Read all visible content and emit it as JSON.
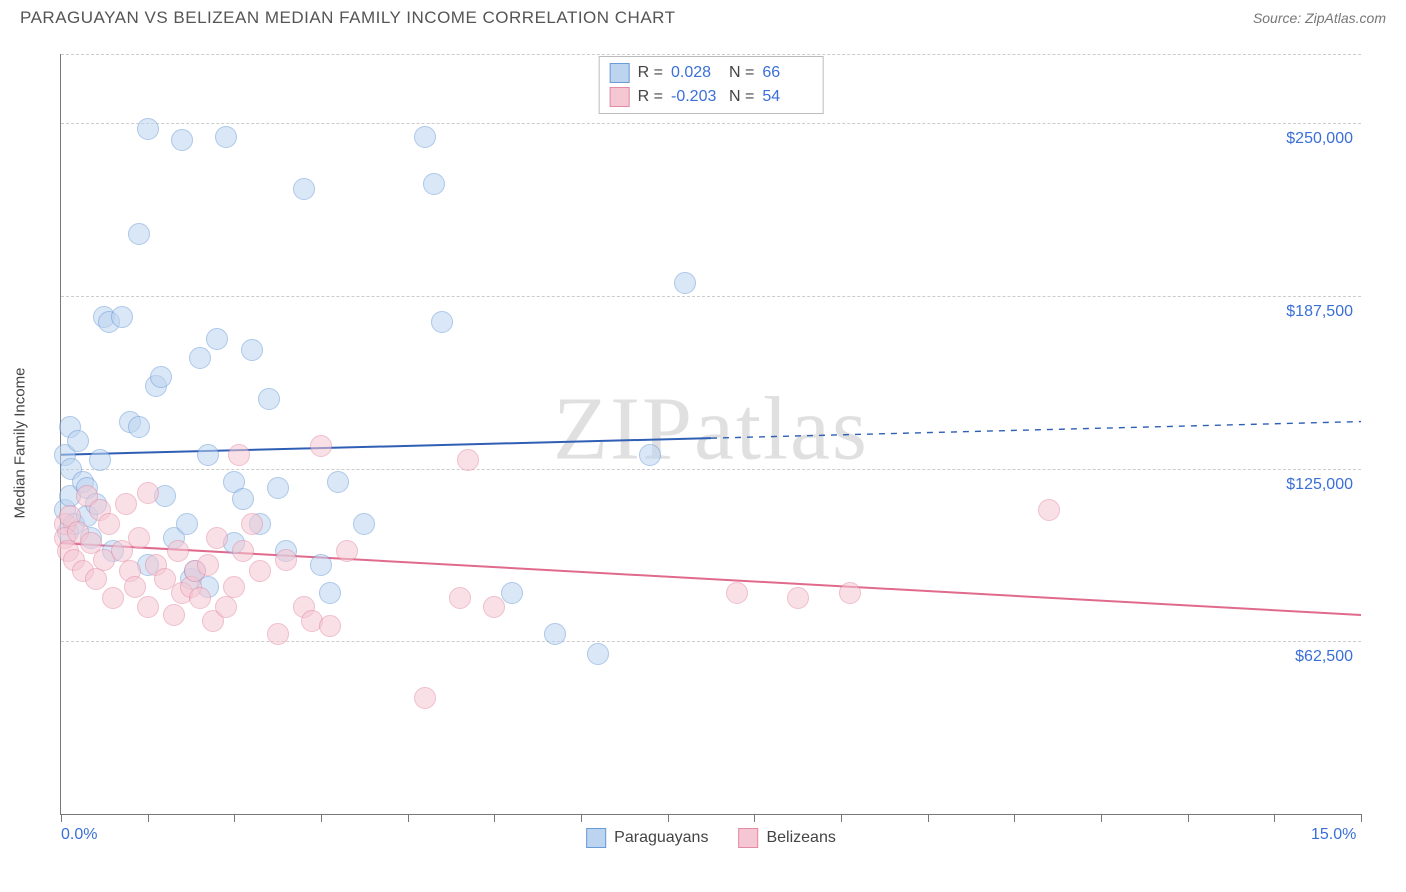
{
  "header": {
    "title": "PARAGUAYAN VS BELIZEAN MEDIAN FAMILY INCOME CORRELATION CHART",
    "source": "Source: ZipAtlas.com"
  },
  "chart": {
    "type": "scatter",
    "ylabel": "Median Family Income",
    "watermark": "ZIPatlas",
    "xlim": [
      0,
      15
    ],
    "ylim": [
      0,
      275000
    ],
    "x_ticks": [
      0,
      1,
      2,
      3,
      4,
      5,
      6,
      7,
      8,
      9,
      10,
      11,
      12,
      13,
      14,
      15
    ],
    "x_tick_labels_shown": {
      "0": "0.0%",
      "15": "15.0%"
    },
    "y_gridlines": [
      62500,
      125000,
      187500,
      250000,
      275000
    ],
    "y_tick_labels": {
      "62500": "$62,500",
      "125000": "$125,000",
      "187500": "$187,500",
      "250000": "$250,000"
    },
    "background_color": "#ffffff",
    "grid_color": "#cccccc",
    "axis_color": "#777777",
    "tick_label_color": "#3a6fd8",
    "marker_radius": 10,
    "marker_border_width": 1.2,
    "series": [
      {
        "name": "Paraguayans",
        "fill": "#bcd4f0",
        "stroke": "#6a9bd8",
        "fill_opacity": 0.55,
        "R": "0.028",
        "N": "66",
        "trend": {
          "y_at_x0": 130000,
          "y_at_x15": 142000,
          "solid_until_x": 7.5,
          "color": "#2f5fb5",
          "width": 2
        },
        "points": [
          [
            0.05,
            130000
          ],
          [
            0.05,
            110000
          ],
          [
            0.08,
            102000
          ],
          [
            0.1,
            115000
          ],
          [
            0.1,
            140000
          ],
          [
            0.12,
            125000
          ],
          [
            0.15,
            105000
          ],
          [
            0.2,
            135000
          ],
          [
            0.25,
            120000
          ],
          [
            0.3,
            118000
          ],
          [
            0.3,
            108000
          ],
          [
            0.35,
            100000
          ],
          [
            0.4,
            112000
          ],
          [
            0.45,
            128000
          ],
          [
            0.5,
            180000
          ],
          [
            0.55,
            178000
          ],
          [
            0.6,
            95000
          ],
          [
            0.7,
            180000
          ],
          [
            0.8,
            142000
          ],
          [
            0.9,
            210000
          ],
          [
            0.9,
            140000
          ],
          [
            1.0,
            248000
          ],
          [
            1.0,
            90000
          ],
          [
            1.1,
            155000
          ],
          [
            1.15,
            158000
          ],
          [
            1.2,
            115000
          ],
          [
            1.3,
            100000
          ],
          [
            1.4,
            244000
          ],
          [
            1.45,
            105000
          ],
          [
            1.5,
            85000
          ],
          [
            1.55,
            88000
          ],
          [
            1.6,
            165000
          ],
          [
            1.7,
            82000
          ],
          [
            1.7,
            130000
          ],
          [
            1.8,
            172000
          ],
          [
            1.9,
            245000
          ],
          [
            2.0,
            98000
          ],
          [
            2.0,
            120000
          ],
          [
            2.1,
            114000
          ],
          [
            2.2,
            168000
          ],
          [
            2.3,
            105000
          ],
          [
            2.4,
            150000
          ],
          [
            2.5,
            118000
          ],
          [
            2.6,
            95000
          ],
          [
            2.8,
            226000
          ],
          [
            3.0,
            90000
          ],
          [
            3.1,
            80000
          ],
          [
            3.2,
            120000
          ],
          [
            3.5,
            105000
          ],
          [
            4.2,
            245000
          ],
          [
            4.3,
            228000
          ],
          [
            4.4,
            178000
          ],
          [
            5.2,
            80000
          ],
          [
            5.7,
            65000
          ],
          [
            6.2,
            58000
          ],
          [
            6.8,
            130000
          ],
          [
            7.2,
            192000
          ]
        ]
      },
      {
        "name": "Belizeans",
        "fill": "#f5c7d3",
        "stroke": "#e48aa5",
        "fill_opacity": 0.55,
        "R": "-0.203",
        "N": "54",
        "trend": {
          "y_at_x0": 98000,
          "y_at_x15": 72000,
          "solid_until_x": 15,
          "color": "#e06a8c",
          "width": 2
        },
        "points": [
          [
            0.05,
            105000
          ],
          [
            0.05,
            100000
          ],
          [
            0.08,
            95000
          ],
          [
            0.1,
            108000
          ],
          [
            0.15,
            92000
          ],
          [
            0.2,
            102000
          ],
          [
            0.25,
            88000
          ],
          [
            0.3,
            115000
          ],
          [
            0.35,
            98000
          ],
          [
            0.4,
            85000
          ],
          [
            0.45,
            110000
          ],
          [
            0.5,
            92000
          ],
          [
            0.55,
            105000
          ],
          [
            0.6,
            78000
          ],
          [
            0.7,
            95000
          ],
          [
            0.75,
            112000
          ],
          [
            0.8,
            88000
          ],
          [
            0.85,
            82000
          ],
          [
            0.9,
            100000
          ],
          [
            1.0,
            116000
          ],
          [
            1.0,
            75000
          ],
          [
            1.1,
            90000
          ],
          [
            1.2,
            85000
          ],
          [
            1.3,
            72000
          ],
          [
            1.35,
            95000
          ],
          [
            1.4,
            80000
          ],
          [
            1.5,
            82000
          ],
          [
            1.55,
            88000
          ],
          [
            1.6,
            78000
          ],
          [
            1.7,
            90000
          ],
          [
            1.75,
            70000
          ],
          [
            1.8,
            100000
          ],
          [
            1.9,
            75000
          ],
          [
            2.0,
            82000
          ],
          [
            2.05,
            130000
          ],
          [
            2.1,
            95000
          ],
          [
            2.2,
            105000
          ],
          [
            2.3,
            88000
          ],
          [
            2.5,
            65000
          ],
          [
            2.6,
            92000
          ],
          [
            2.8,
            75000
          ],
          [
            2.9,
            70000
          ],
          [
            3.0,
            133000
          ],
          [
            3.1,
            68000
          ],
          [
            3.3,
            95000
          ],
          [
            4.2,
            42000
          ],
          [
            4.6,
            78000
          ],
          [
            4.7,
            128000
          ],
          [
            5.0,
            75000
          ],
          [
            7.8,
            80000
          ],
          [
            8.5,
            78000
          ],
          [
            9.1,
            80000
          ],
          [
            11.4,
            110000
          ]
        ]
      }
    ],
    "legend_top_labels": {
      "R_prefix": "R =",
      "N_prefix": "N ="
    },
    "legend_bottom": [
      {
        "label": "Paraguayans",
        "fill": "#bcd4f0",
        "stroke": "#6a9bd8"
      },
      {
        "label": "Belizeans",
        "fill": "#f5c7d3",
        "stroke": "#e48aa5"
      }
    ]
  }
}
